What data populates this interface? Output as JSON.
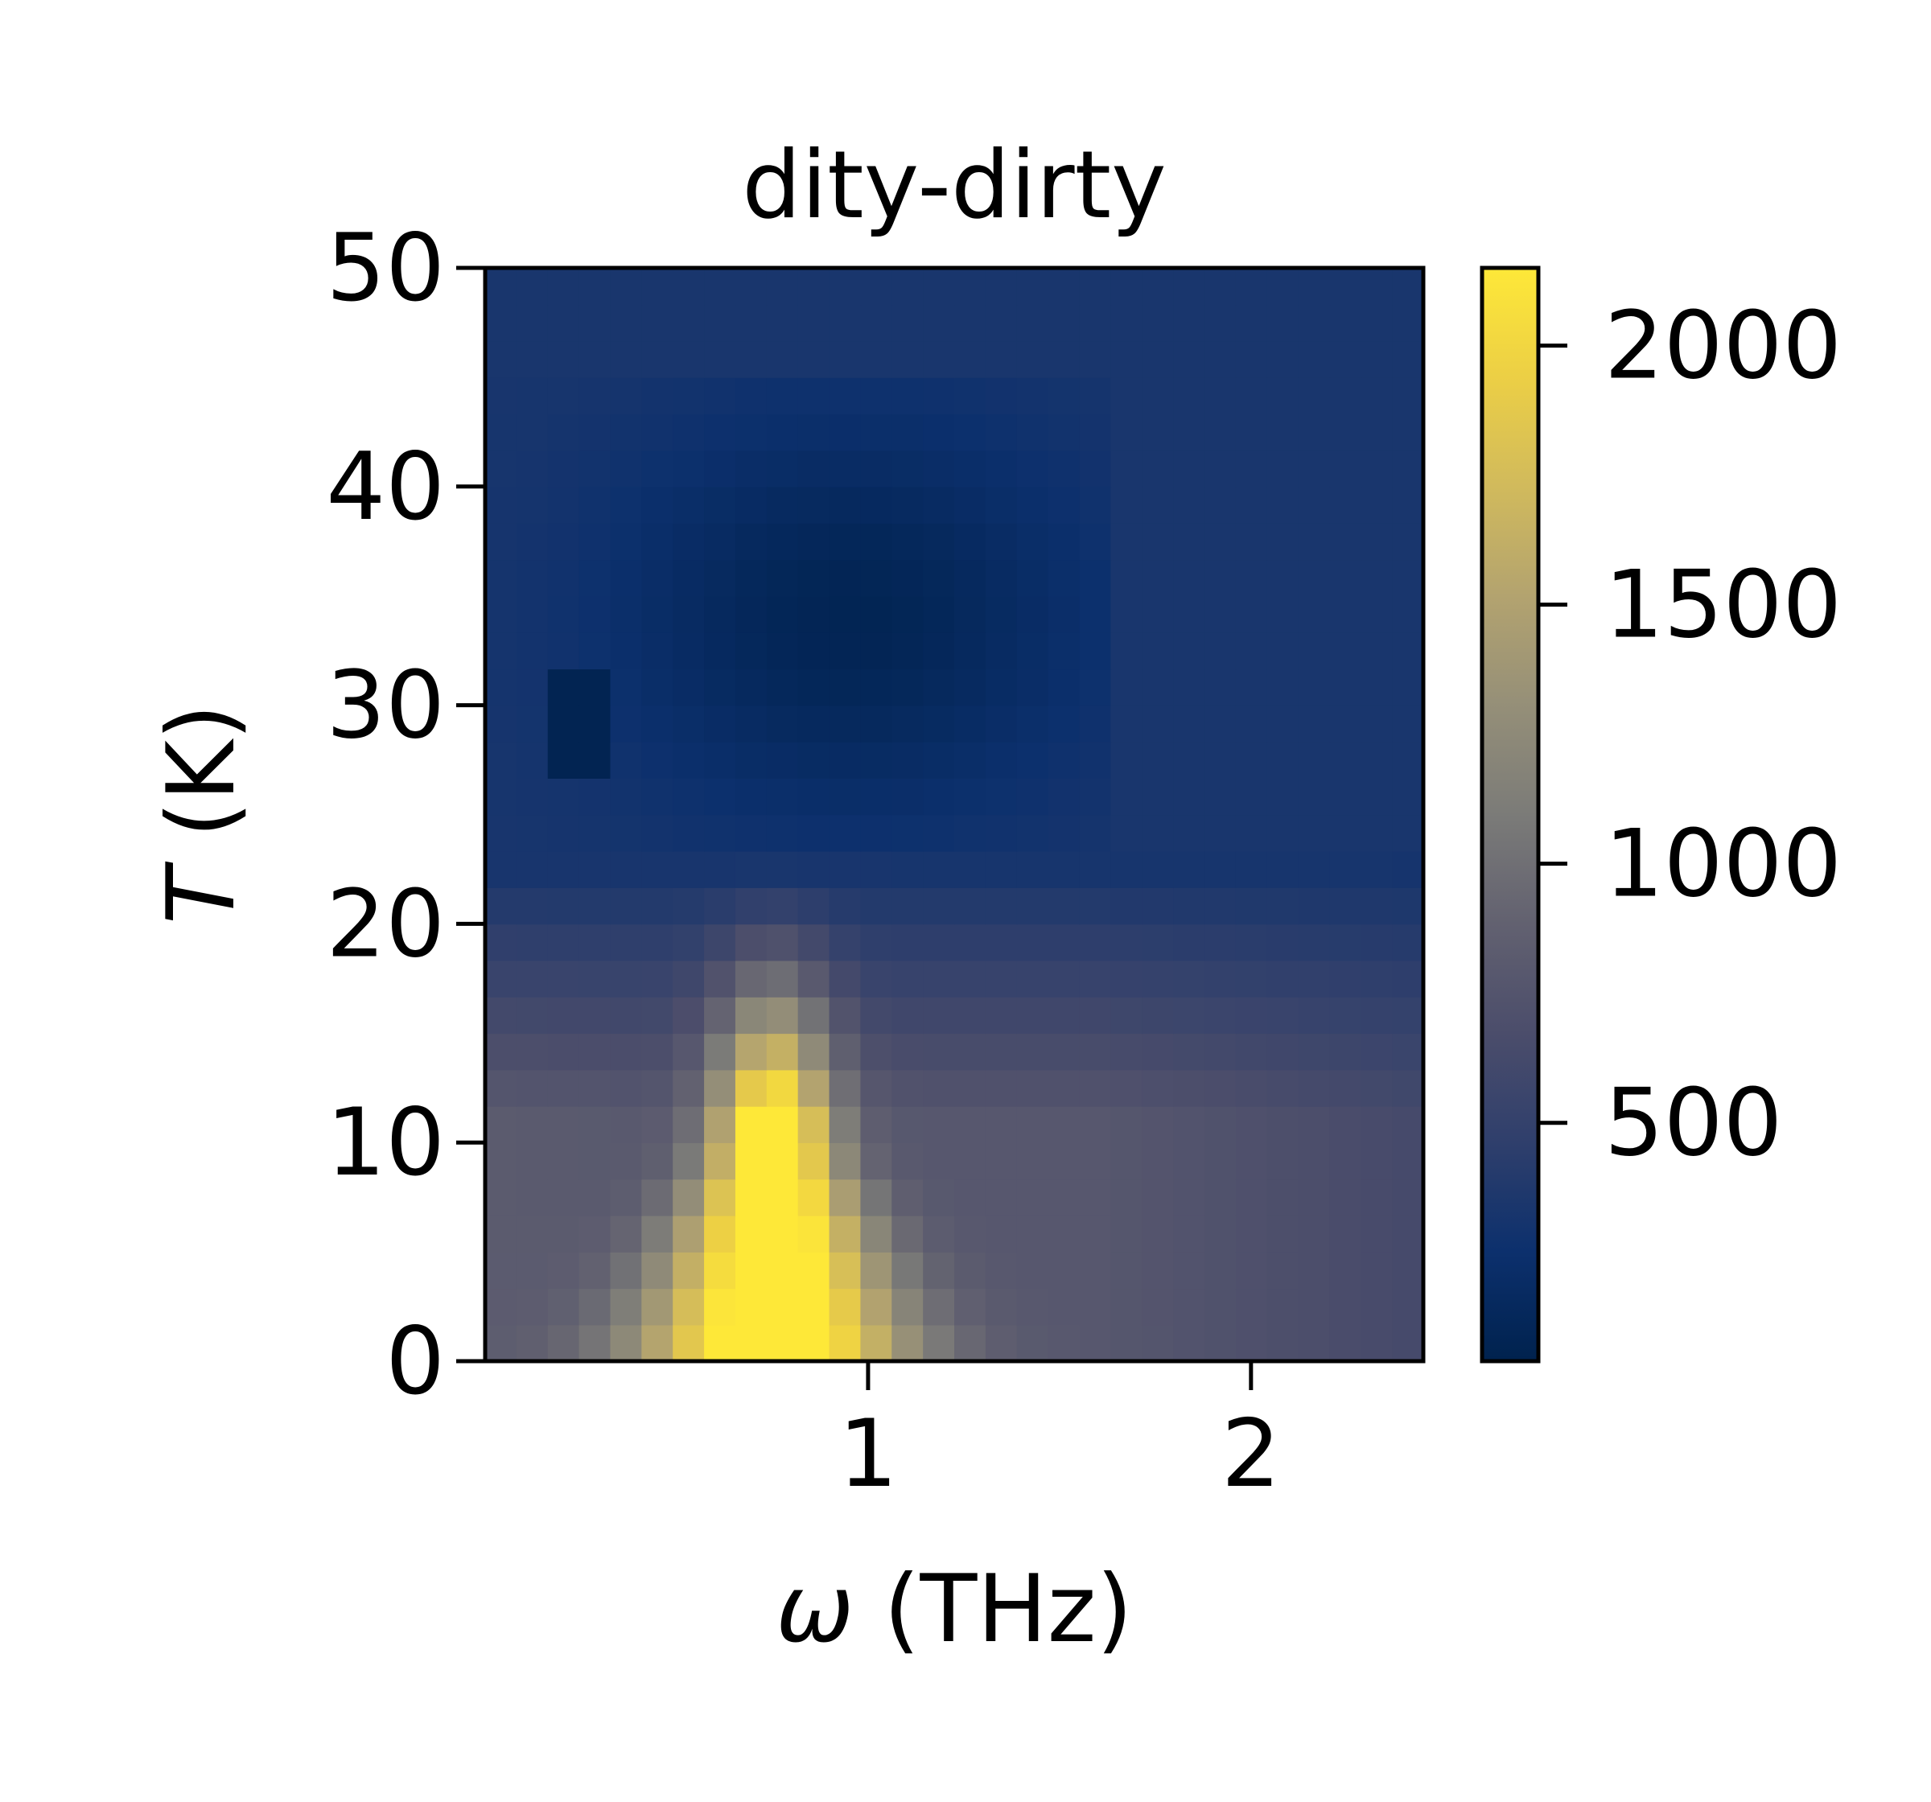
{
  "chart_data": {
    "type": "heatmap",
    "title": "dity-dirty",
    "xlabel_symbol": "ω",
    "xlabel_unit": "(THz)",
    "ylabel_symbol": "T",
    "ylabel_unit": "(K)",
    "xlim": [
      0.0,
      2.45
    ],
    "ylim": [
      0,
      50
    ],
    "x_ticks": [
      1,
      2
    ],
    "y_ticks": [
      0,
      10,
      20,
      30,
      40,
      50
    ],
    "colorbar": {
      "colormap": "cividis",
      "vmin": 40,
      "vmax": 2150,
      "ticks": [
        500,
        1000,
        1500,
        2000
      ]
    },
    "grid_cols": 30,
    "grid_rows": 30,
    "description_of_data": "intensity(omega, T): strong peak near omega 0.75-0.8 THz below T ~ 15 K, dark minimum region T 25-45 K"
  }
}
